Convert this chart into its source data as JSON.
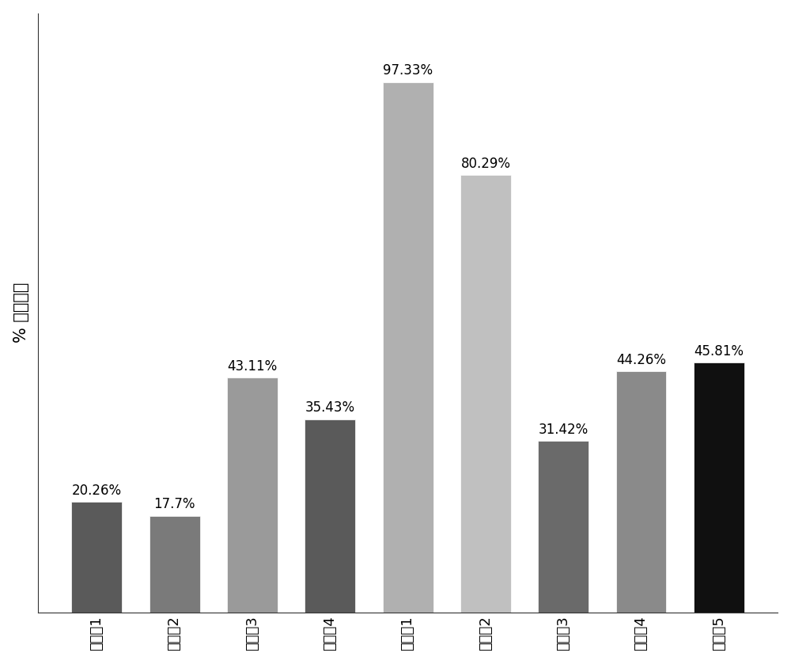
{
  "categories": [
    "对比例1",
    "对比例2",
    "对比例3",
    "对比例4",
    "实施例1",
    "实施例2",
    "实施例3",
    "实施例4",
    "实施例5"
  ],
  "values": [
    20.26,
    17.7,
    43.11,
    35.43,
    97.33,
    80.29,
    31.42,
    44.26,
    45.81
  ],
  "labels": [
    "20.26%",
    "17.7%",
    "43.11%",
    "35.43%",
    "97.33%",
    "80.29%",
    "31.42%",
    "44.26%",
    "45.81%"
  ],
  "bar_colors": [
    "#5a5a5a",
    "#7a7a7a",
    "#9a9a9a",
    "#5a5a5a",
    "#b0b0b0",
    "#c0c0c0",
    "#6a6a6a",
    "#8a8a8a",
    "#101010"
  ],
  "ylabel": "% 祁去除率",
  "ylim": [
    0,
    110
  ],
  "background_color": "#ffffff",
  "label_fontsize": 12,
  "ylabel_fontsize": 15,
  "tick_fontsize": 13
}
